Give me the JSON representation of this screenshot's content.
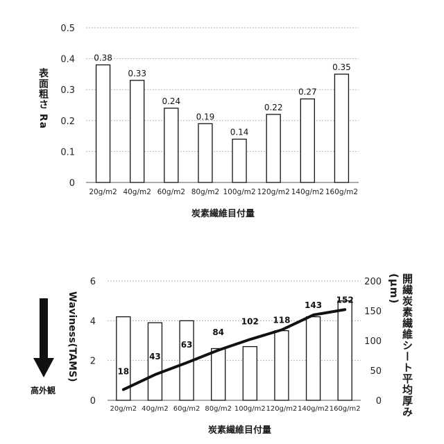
{
  "chart_data": [
    {
      "type": "bar",
      "xlabel": "炭素繊維目付量",
      "ylabel": "表面粗さ Ra",
      "ylim": [
        0,
        0.5
      ],
      "yticks": [
        "0",
        "0.1",
        "0.2",
        "0.3",
        "0.4",
        "0.5"
      ],
      "categories": [
        "20g/m2",
        "40g/m2",
        "60g/m2",
        "80g/m2",
        "100g/m2",
        "120g/m2",
        "140g/m2",
        "160g/m2"
      ],
      "values": [
        0.38,
        0.33,
        0.24,
        0.19,
        0.14,
        0.22,
        0.27,
        0.35
      ],
      "data_labels": [
        "0.38",
        "0.33",
        "0.24",
        "0.19",
        "0.14",
        "0.22",
        "0.27",
        "0.35"
      ],
      "grid": true
    },
    {
      "type": "bar+line",
      "xlabel": "炭素繊維目付量",
      "ylabel_left": "Waviness(TAMS)",
      "ylabel_right": "開繊炭素繊維シート平均厚み(μm)",
      "ylim_left": [
        0,
        6
      ],
      "ylim_right": [
        0,
        200
      ],
      "yticks_left": [
        "0",
        "2",
        "4",
        "6"
      ],
      "yticks_right": [
        "0",
        "50",
        "100",
        "150",
        "200"
      ],
      "categories": [
        "20g/m2",
        "40g/m2",
        "60g/m2",
        "80g/m2",
        "100g/m2",
        "120g/m2",
        "140g/m2",
        "160g/m2"
      ],
      "bar_values": [
        4.2,
        3.9,
        4.0,
        2.6,
        2.7,
        3.5,
        4.2,
        5.0
      ],
      "line_values": [
        18,
        43,
        63,
        84,
        102,
        118,
        143,
        152
      ],
      "line_labels": [
        "18",
        "43",
        "63",
        "84",
        "102",
        "118",
        "143",
        "152"
      ],
      "grid": true
    }
  ],
  "arrow_caption": "高外観"
}
